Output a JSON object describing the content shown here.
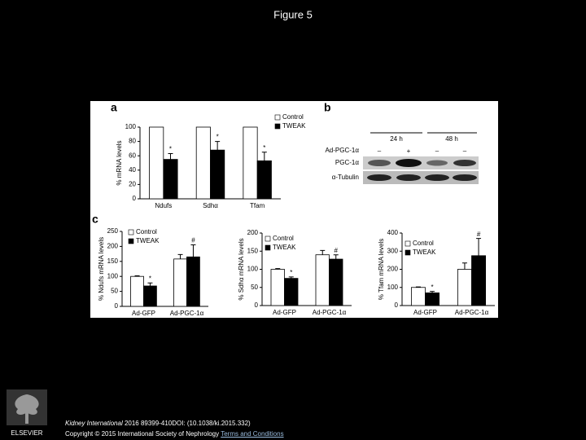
{
  "figure": {
    "title": "Figure 5",
    "panels": [
      "a",
      "b",
      "c"
    ]
  },
  "chart_data": [
    {
      "type": "bar",
      "ylabel": "% mRNA levels",
      "categories": [
        "Ndufs",
        "Sdhα",
        "Tfam"
      ],
      "series": [
        {
          "name": "Control",
          "color": "#ffffff",
          "values": [
            100,
            100,
            100
          ]
        },
        {
          "name": "TWEAK",
          "color": "#000000",
          "values": [
            55,
            68,
            53
          ],
          "errors": [
            8,
            12,
            12
          ],
          "symbols": [
            "*",
            "*",
            "*"
          ]
        }
      ],
      "ylim": [
        0,
        100
      ],
      "yticks": [
        0,
        20,
        40,
        60,
        80,
        100
      ]
    },
    {
      "type": "bar",
      "ylabel": "% Ndufs mRNA levels",
      "categories": [
        "Ad-GFP",
        "Ad-PGC-1α"
      ],
      "series": [
        {
          "name": "Control",
          "color": "#ffffff",
          "values": [
            100,
            158
          ],
          "errors": [
            2,
            15
          ]
        },
        {
          "name": "TWEAK",
          "color": "#000000",
          "values": [
            68,
            165
          ],
          "errors": [
            10,
            40
          ],
          "symbols": [
            "*",
            "#"
          ]
        }
      ],
      "ylim": [
        0,
        250
      ],
      "yticks": [
        0,
        50,
        100,
        150,
        200,
        250
      ]
    },
    {
      "type": "bar",
      "ylabel": "% Sdhα mRNA levels",
      "categories": [
        "Ad-GFP",
        "Ad-PGC-1α"
      ],
      "series": [
        {
          "name": "Control",
          "color": "#ffffff",
          "values": [
            100,
            140
          ],
          "errors": [
            2,
            12
          ]
        },
        {
          "name": "TWEAK",
          "color": "#000000",
          "values": [
            75,
            128
          ],
          "errors": [
            4,
            12
          ],
          "symbols": [
            "*",
            "#"
          ]
        }
      ],
      "ylim": [
        0,
        200
      ],
      "yticks": [
        0,
        50,
        100,
        150,
        200
      ]
    },
    {
      "type": "bar",
      "ylabel": "% Tfam mRNA levels",
      "categories": [
        "Ad-GFP",
        "Ad-PGC-1α"
      ],
      "series": [
        {
          "name": "Control",
          "color": "#ffffff",
          "values": [
            100,
            200
          ],
          "errors": [
            3,
            35
          ]
        },
        {
          "name": "TWEAK",
          "color": "#000000",
          "values": [
            70,
            275
          ],
          "errors": [
            8,
            95
          ],
          "symbols": [
            "*",
            "#"
          ]
        }
      ],
      "ylim": [
        0,
        400
      ],
      "yticks": [
        0,
        100,
        200,
        300,
        400
      ]
    }
  ],
  "blot": {
    "timepoints": [
      "24 h",
      "48 h"
    ],
    "treatment": "Ad-PGC-1α",
    "lanes": [
      "–",
      "+",
      "–",
      "–"
    ],
    "rows": [
      "PGC-1α",
      "α-Tubulin"
    ]
  },
  "footer": {
    "journal": "Kidney International",
    "citation": " 2016 89399-410DOI: (10.1038/ki.2015.332)",
    "copyright": "Copyright © 2015 International Society of Nephrology",
    "link": "Terms and Conditions",
    "publisher": "ELSEVIER"
  }
}
